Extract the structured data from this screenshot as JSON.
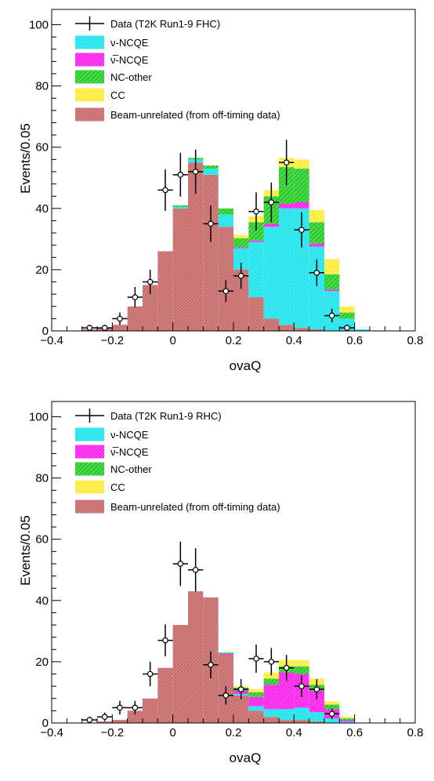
{
  "chart_data": [
    {
      "type": "bar",
      "stacked": true,
      "xlabel": "ovaQ",
      "ylabel": "Events/0.05",
      "xlim": [
        -0.4,
        0.8
      ],
      "ylim": [
        0,
        105
      ],
      "xticks": [
        "−0.4",
        "−0.2",
        "0",
        "0.2",
        "0.4",
        "0.6",
        "0.8"
      ],
      "yticks": [
        "0",
        "20",
        "40",
        "60",
        "80",
        "100"
      ],
      "legend_position": "top-left",
      "bin_edges": [
        -0.4,
        -0.35,
        -0.3,
        -0.25,
        -0.2,
        -0.15,
        -0.1,
        -0.05,
        0.0,
        0.05,
        0.1,
        0.15,
        0.2,
        0.25,
        0.3,
        0.35,
        0.4,
        0.45,
        0.5,
        0.55,
        0.6,
        0.65,
        0.7,
        0.75,
        0.8
      ],
      "series": [
        {
          "name": "Beam-unrelated (from off-timing data)",
          "color": "#c46a6a",
          "values": [
            0,
            0,
            0.5,
            0.8,
            2,
            8,
            15,
            26,
            40,
            55,
            51,
            34,
            20,
            11,
            4,
            2,
            1,
            0.5,
            0,
            0,
            0,
            0,
            0,
            0
          ]
        },
        {
          "name": "ν-NCQE",
          "color": "#22e0e8",
          "values": [
            0,
            0,
            0,
            0,
            0,
            0,
            0,
            0,
            0.5,
            1,
            2,
            4,
            7,
            18,
            30,
            38,
            39,
            27,
            13,
            4,
            0.5,
            0,
            0,
            0
          ]
        },
        {
          "name": "ν̅-NCQE",
          "color": "#ff22ee",
          "values": [
            0,
            0,
            0,
            0,
            0,
            0,
            0,
            0,
            0,
            0,
            0,
            0,
            0.3,
            0.5,
            1,
            1.5,
            2,
            1,
            0.5,
            0,
            0,
            0,
            0,
            0
          ]
        },
        {
          "name": "NC-other",
          "color": "#33cc33",
          "values": [
            0,
            0,
            0,
            0,
            0,
            0,
            0,
            0,
            0.5,
            0.5,
            1,
            2,
            3,
            6,
            9,
            12,
            11,
            7,
            5,
            2,
            0,
            0,
            0,
            0
          ]
        },
        {
          "name": "CC",
          "color": "#ffee55",
          "values": [
            0,
            0,
            0,
            0,
            0,
            0,
            0,
            0,
            0,
            0,
            0,
            0,
            1,
            2,
            2,
            3,
            3,
            4,
            5,
            2,
            0,
            0,
            0,
            0
          ]
        }
      ],
      "data_series": {
        "name": "Data (T2K Run1-9 FHC)",
        "x": [
          -0.275,
          -0.225,
          -0.175,
          -0.125,
          -0.075,
          -0.025,
          0.025,
          0.075,
          0.125,
          0.175,
          0.225,
          0.275,
          0.325,
          0.375,
          0.425,
          0.475,
          0.525,
          0.575
        ],
        "y": [
          1,
          1,
          4,
          11,
          16,
          46,
          51,
          52,
          35,
          13,
          18,
          39,
          42,
          55,
          33,
          19,
          5,
          1
        ]
      }
    },
    {
      "type": "bar",
      "stacked": true,
      "xlabel": "ovaQ",
      "ylabel": "Events/0.05",
      "xlim": [
        -0.4,
        0.8
      ],
      "ylim": [
        0,
        105
      ],
      "xticks": [
        "−0.4",
        "−0.2",
        "0",
        "0.2",
        "0.4",
        "0.6",
        "0.8"
      ],
      "yticks": [
        "0",
        "20",
        "40",
        "60",
        "80",
        "100"
      ],
      "legend_position": "top-left",
      "bin_edges": [
        -0.4,
        -0.35,
        -0.3,
        -0.25,
        -0.2,
        -0.15,
        -0.1,
        -0.05,
        0.0,
        0.05,
        0.1,
        0.15,
        0.2,
        0.25,
        0.3,
        0.35,
        0.4,
        0.45,
        0.5,
        0.55,
        0.6,
        0.65,
        0.7,
        0.75,
        0.8
      ],
      "series": [
        {
          "name": "Beam-unrelated (from off-timing data)",
          "color": "#c46a6a",
          "values": [
            0,
            0,
            0,
            0.5,
            1,
            4,
            8,
            18,
            32,
            43,
            41,
            22,
            9,
            4,
            2,
            1,
            1,
            0.5,
            0,
            0,
            0,
            0,
            0,
            0
          ]
        },
        {
          "name": "ν-NCQE",
          "color": "#22e0e8",
          "values": [
            0,
            0,
            0,
            0,
            0,
            0,
            0,
            0,
            0,
            0,
            0,
            0,
            0.5,
            1.5,
            2.5,
            3.5,
            4,
            3,
            1.5,
            0.5,
            0,
            0,
            0,
            0
          ]
        },
        {
          "name": "ν̅-NCQE",
          "color": "#ff22ee",
          "values": [
            0,
            0,
            0,
            0,
            0,
            0,
            0,
            0,
            0,
            0,
            0,
            0.5,
            1,
            3,
            8,
            12,
            11,
            7,
            3,
            0.5,
            0,
            0,
            0,
            0
          ]
        },
        {
          "name": "NC-other",
          "color": "#33cc33",
          "values": [
            0,
            0,
            0,
            0,
            0,
            0,
            0,
            0,
            0,
            0,
            0,
            0.5,
            1,
            1.5,
            2,
            2,
            2.5,
            2,
            1.5,
            0.5,
            0,
            0,
            0,
            0
          ]
        },
        {
          "name": "CC",
          "color": "#ffee55",
          "values": [
            0,
            0,
            0,
            0,
            0,
            0,
            0,
            0,
            0,
            0,
            0,
            0,
            0.5,
            1,
            2,
            2,
            2,
            2,
            1,
            0.5,
            0,
            0,
            0,
            0
          ]
        }
      ],
      "data_series": {
        "name": "Data (T2K Run1-9 RHC)",
        "x": [
          -0.275,
          -0.225,
          -0.175,
          -0.125,
          -0.075,
          -0.025,
          0.025,
          0.075,
          0.125,
          0.175,
          0.225,
          0.275,
          0.325,
          0.375,
          0.425,
          0.475,
          0.525
        ],
        "y": [
          1,
          2,
          5,
          5,
          16,
          27,
          52,
          50,
          19,
          9,
          11,
          21,
          20,
          18,
          12,
          11,
          3
        ]
      }
    }
  ]
}
